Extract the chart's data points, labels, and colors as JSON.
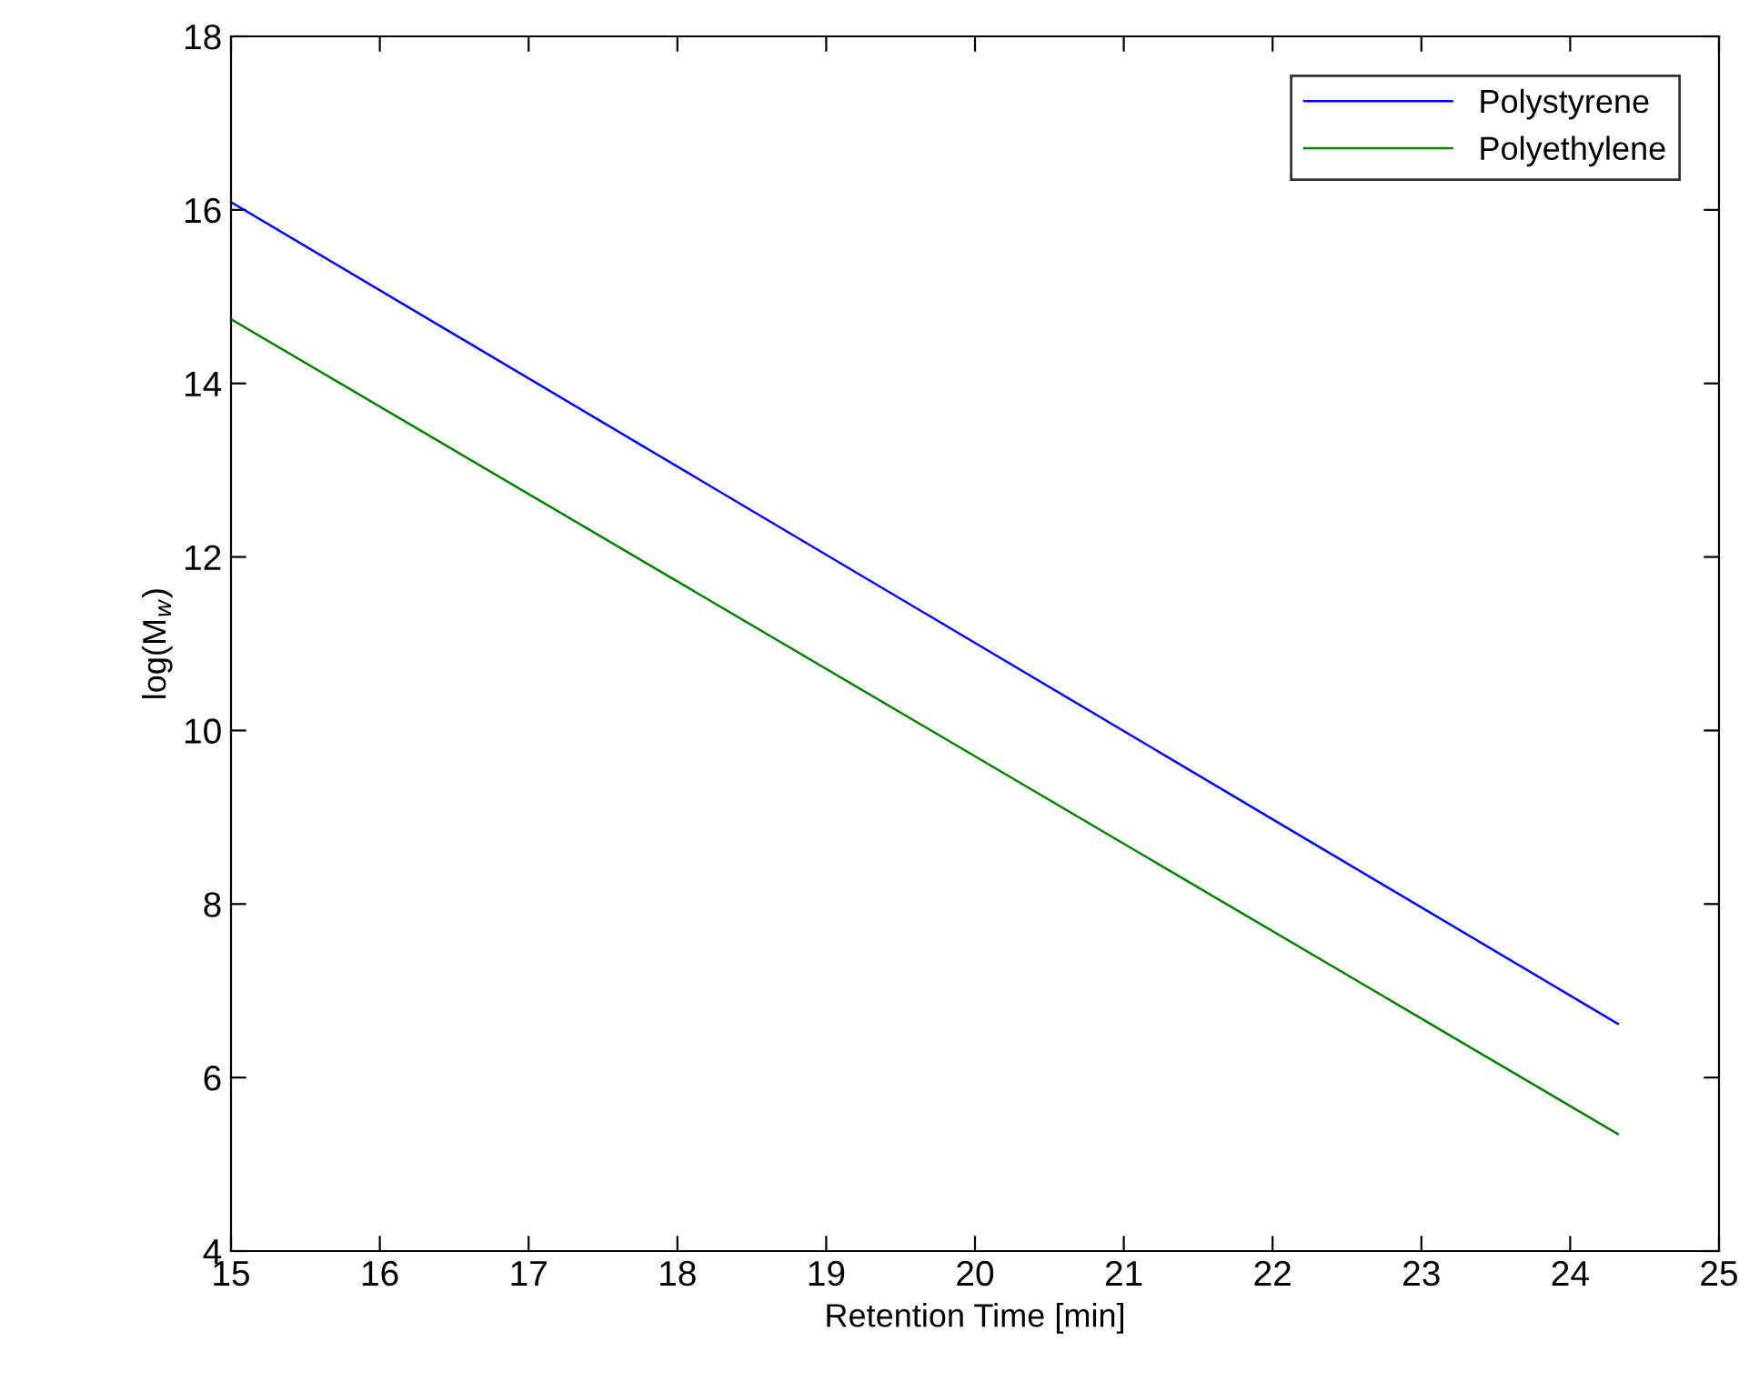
{
  "chart_data": {
    "type": "line",
    "xlabel": "Retention Time [min]",
    "ylabel": "log(M$_{w}$)",
    "x": [
      15.0,
      24.32
    ],
    "series": [
      {
        "name": "Polystyrene",
        "color": "#0000ff",
        "values": [
          16.09,
          6.62
        ]
      },
      {
        "name": "Polyethylene",
        "color": "#008000",
        "values": [
          14.74,
          5.35
        ]
      }
    ],
    "xlim": [
      15,
      25
    ],
    "xticks": [
      15,
      16,
      17,
      18,
      19,
      20,
      21,
      22,
      23,
      24,
      25
    ],
    "ylim": [
      4,
      18
    ],
    "yticks": [
      4,
      6,
      8,
      10,
      12,
      14,
      16,
      18
    ],
    "grid": false,
    "legend": "top right",
    "marker": "none",
    "line_style": "solid"
  }
}
